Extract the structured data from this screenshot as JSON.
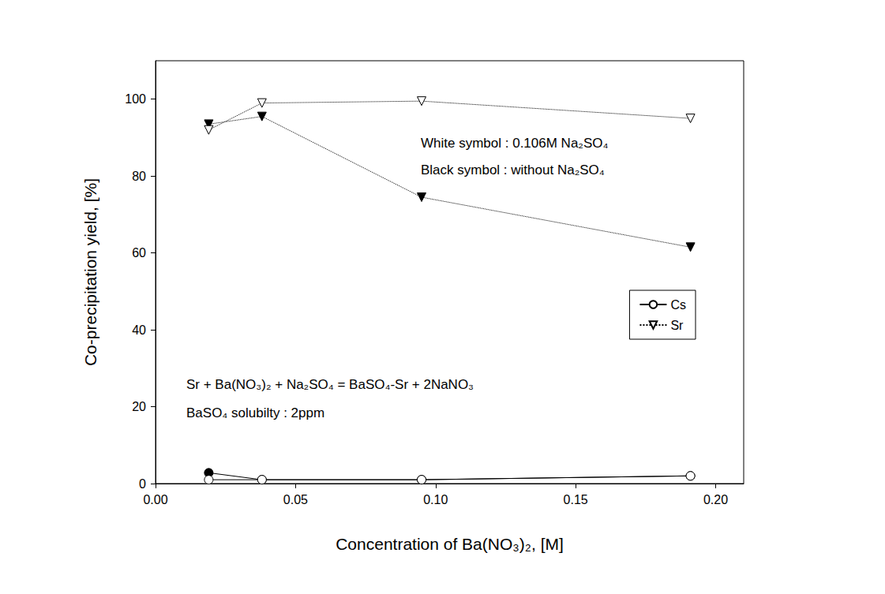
{
  "chart_data": {
    "type": "line",
    "x_label": "Concentration of Ba(NO₃)₂, [M]",
    "y_label": "Co-precipitation yield, [%]",
    "x": [
      0.019,
      0.038,
      0.095,
      0.191
    ],
    "series": [
      {
        "name": "Cs",
        "color": "white",
        "marker": "circle",
        "line_style": "solid",
        "values": [
          1,
          1,
          1,
          2
        ]
      },
      {
        "name": "Sr",
        "color": "white",
        "marker": "triangle-down",
        "line_style": "dotted",
        "values": [
          92,
          99,
          99.5,
          95
        ]
      },
      {
        "name": "Cs",
        "color": "black",
        "marker": "circle",
        "line_style": "solid",
        "values": [
          2.8,
          1,
          1,
          2
        ]
      },
      {
        "name": "Sr",
        "color": "black",
        "marker": "triangle-down",
        "line_style": "dotted",
        "values": [
          93.5,
          95.5,
          74.5,
          61.5
        ]
      }
    ],
    "annotations": [
      "White symbol : 0.106M Na₂SO₄",
      "Black symbol : without Na₂SO₄",
      "Sr + Ba(NO₃)₂ + Na₂SO₄ = BaSO₄-Sr + 2NaNO₃",
      "BaSO₄ solubilty : 2ppm"
    ],
    "xlim": [
      0,
      0.21
    ],
    "xticks": [
      {
        "value": 0,
        "label": "0.00"
      },
      {
        "value": 0.05,
        "label": "0.05"
      },
      {
        "value": 0.1,
        "label": "0.10"
      },
      {
        "value": 0.15,
        "label": "0.15"
      },
      {
        "value": 0.2,
        "label": "0.20"
      }
    ],
    "ylim": [
      0,
      110
    ],
    "yticks": [
      0,
      20,
      40,
      60,
      80,
      100
    ],
    "grid": false,
    "legend": "right"
  }
}
